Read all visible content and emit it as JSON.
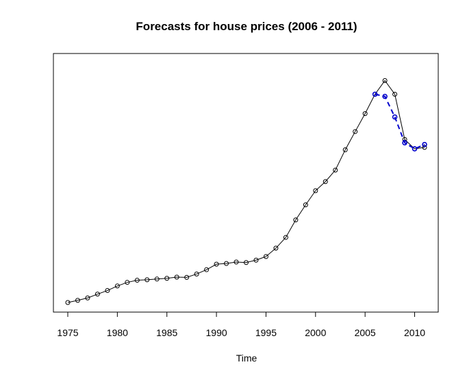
{
  "chart_data": {
    "type": "line",
    "title": "Forecasts for house prices (2006 - 2011)",
    "xlabel": "Time",
    "ylabel": "",
    "xlim": [
      1975,
      2011
    ],
    "ylim": [
      0,
      100
    ],
    "x_ticks": [
      1975,
      1980,
      1985,
      1990,
      1995,
      2000,
      2005,
      2010
    ],
    "y_axis_shown": false,
    "grid": false,
    "colors": {
      "actual": "#000000",
      "forecast": "#0000cc"
    },
    "series": [
      {
        "kind": "actual",
        "style": "solid-line-with-open-circles",
        "x": [
          1975,
          1976,
          1977,
          1978,
          1979,
          1980,
          1981,
          1982,
          1983,
          1984,
          1985,
          1986,
          1987,
          1988,
          1989,
          1990,
          1991,
          1992,
          1993,
          1994,
          1995,
          1996,
          1997,
          1998,
          1999,
          2000,
          2001,
          2002,
          2003,
          2004,
          2005,
          2006,
          2007,
          2008,
          2009,
          2010,
          2011
        ],
        "values": [
          0,
          0.9,
          1.9,
          3.5,
          5.0,
          6.9,
          8.4,
          9.3,
          9.5,
          9.8,
          10.1,
          10.6,
          10.5,
          11.9,
          13.7,
          16.0,
          16.3,
          16.9,
          16.7,
          17.7,
          19.2,
          22.7,
          27.2,
          34.5,
          40.8,
          46.7,
          50.5,
          55.3,
          63.8,
          71.4,
          78.9,
          87.0,
          92.7,
          87.0,
          68.1,
          64.2,
          64.8
        ]
      },
      {
        "kind": "forecast",
        "style": "dashed-line-with-open-circles",
        "x": [
          2006,
          2007,
          2008,
          2009,
          2010,
          2011
        ],
        "values": [
          87.0,
          86.1,
          77.5,
          66.7,
          64.2,
          66.0
        ]
      }
    ]
  }
}
